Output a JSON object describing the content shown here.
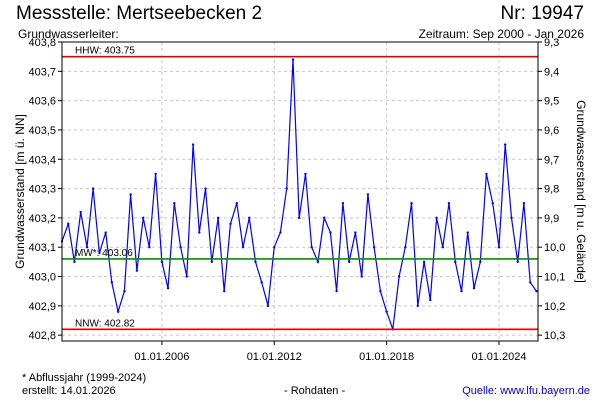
{
  "header": {
    "title": "Messstelle: Mertseebecken 2",
    "number": "Nr: 19947",
    "subtitle_left": "Grundwasserleiter:",
    "subtitle_right": "Zeitraum: Sep 2000 - Jan 2026"
  },
  "footer": {
    "note": "* Abflussjahr (1999-2024)",
    "created": "erstellt:  14.01.2026",
    "rawdata": "- Rohdaten -",
    "source": "Quelle: www.lfu.bayern.de"
  },
  "chart_data": {
    "type": "line",
    "ylabel": "Grundwasserstand [m ü. NN]",
    "ylabel_right": "Grundwasserstand [m u. Gelände]",
    "ylim": [
      402.78,
      403.8
    ],
    "yticks": [
      402.8,
      402.9,
      403.0,
      403.1,
      403.2,
      403.3,
      403.4,
      403.5,
      403.6,
      403.7,
      403.8
    ],
    "ytick_labels": [
      "402,8",
      "402,9",
      "403,0",
      "403,1",
      "403,2",
      "403,3",
      "403,4",
      "403,5",
      "403,6",
      "403,7",
      "403,8"
    ],
    "ytick_right_labels": [
      "10,3",
      "10,2",
      "10,1",
      "10,0",
      "9,9",
      "9,8",
      "9,7",
      "9,6",
      "9,5",
      "9,4",
      "9,3"
    ],
    "xlim": [
      "2000-09-01",
      "2026-01-31"
    ],
    "xticks": [
      "2006-01-01",
      "2012-01-01",
      "2018-01-01",
      "2024-01-01"
    ],
    "xtick_labels": [
      "01.01.2006",
      "01.01.2012",
      "01.01.2018",
      "01.01.2024"
    ],
    "grid": true,
    "reference_lines": [
      {
        "label": "HHW: 403.75",
        "value": 403.75,
        "color": "#e00000"
      },
      {
        "label": "MW*: 403.06",
        "value": 403.06,
        "color": "#009000"
      },
      {
        "label": "NNW: 402.82",
        "value": 402.82,
        "color": "#e00000"
      }
    ],
    "series": [
      {
        "color": "#0000ff",
        "x": [
          "2000-09-01",
          "2001-01-01",
          "2001-05-01",
          "2001-09-01",
          "2002-01-01",
          "2002-05-01",
          "2002-09-01",
          "2003-01-01",
          "2003-05-01",
          "2003-09-01",
          "2004-01-01",
          "2004-05-01",
          "2004-09-01",
          "2005-01-01",
          "2005-05-01",
          "2005-09-01",
          "2006-01-01",
          "2006-05-01",
          "2006-09-01",
          "2007-01-01",
          "2007-05-01",
          "2007-09-01",
          "2008-01-01",
          "2008-05-01",
          "2008-09-01",
          "2009-01-01",
          "2009-05-01",
          "2009-09-01",
          "2010-01-01",
          "2010-05-01",
          "2010-09-01",
          "2011-01-01",
          "2011-05-01",
          "2011-09-01",
          "2012-01-01",
          "2012-05-01",
          "2012-09-01",
          "2013-01-01",
          "2013-05-01",
          "2013-09-01",
          "2014-01-01",
          "2014-05-01",
          "2014-09-01",
          "2015-01-01",
          "2015-05-01",
          "2015-09-01",
          "2016-01-01",
          "2016-05-01",
          "2016-09-01",
          "2017-01-01",
          "2017-05-01",
          "2017-09-01",
          "2018-01-01",
          "2018-05-01",
          "2018-09-01",
          "2019-01-01",
          "2019-05-01",
          "2019-09-01",
          "2020-01-01",
          "2020-05-01",
          "2020-09-01",
          "2021-01-01",
          "2021-05-01",
          "2021-09-01",
          "2022-01-01",
          "2022-05-01",
          "2022-09-01",
          "2023-01-01",
          "2023-05-01",
          "2023-09-01",
          "2024-01-01",
          "2024-05-01",
          "2024-09-01",
          "2025-01-01",
          "2025-05-01",
          "2025-09-01",
          "2026-01-01"
        ],
        "y": [
          403.12,
          403.18,
          403.05,
          403.22,
          403.1,
          403.3,
          403.08,
          403.15,
          402.98,
          402.88,
          402.95,
          403.28,
          403.02,
          403.2,
          403.1,
          403.35,
          403.05,
          402.96,
          403.25,
          403.1,
          403.0,
          403.45,
          403.15,
          403.3,
          403.05,
          403.2,
          402.95,
          403.18,
          403.25,
          403.1,
          403.2,
          403.05,
          402.98,
          402.9,
          403.1,
          403.15,
          403.3,
          403.74,
          403.2,
          403.35,
          403.1,
          403.05,
          403.2,
          403.15,
          402.95,
          403.25,
          403.05,
          403.15,
          403.0,
          403.28,
          403.1,
          402.95,
          402.88,
          402.82,
          403.0,
          403.1,
          403.25,
          402.9,
          403.05,
          402.92,
          403.2,
          403.1,
          403.25,
          403.05,
          402.95,
          403.15,
          402.96,
          403.05,
          403.35,
          403.25,
          403.1,
          403.45,
          403.2,
          403.05,
          403.25,
          402.98,
          402.95
        ]
      }
    ]
  }
}
